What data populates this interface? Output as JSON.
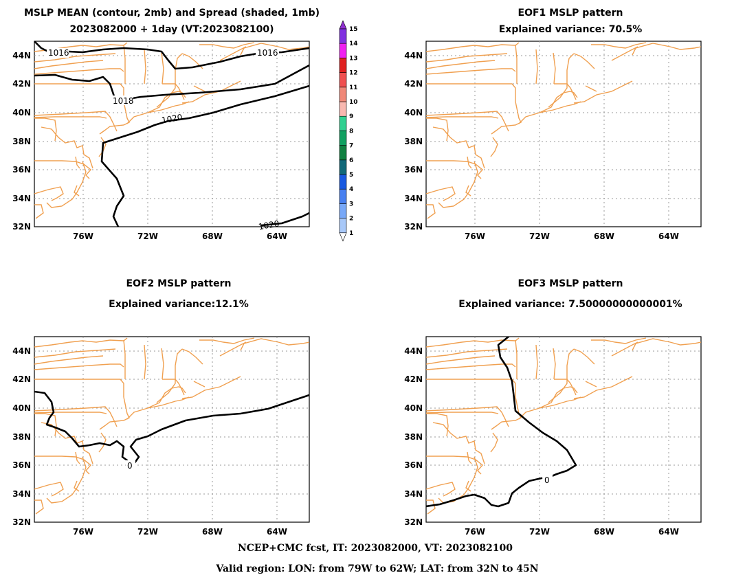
{
  "colors": {
    "coastline": "#f0a050",
    "contour": "#000000",
    "grid": "#999999"
  },
  "panels": [
    {
      "id": "mean",
      "title1": "MSLP MEAN (contour, 2mb) and Spread (shaded, 1mb)",
      "title2": "2023082000 + 1day (VT:2023082100)",
      "contour_labels": [
        "1016",
        "1016",
        "1018",
        "1020",
        "1020"
      ]
    },
    {
      "id": "eof1",
      "title1": "EOF1 MSLP pattern",
      "title2": "Explained variance: 70.5%",
      "contour_labels": []
    },
    {
      "id": "eof2",
      "title1": "EOF2 MSLP pattern",
      "title2": "Explained variance:12.1%",
      "contour_labels": [
        "0"
      ]
    },
    {
      "id": "eof3",
      "title1": "EOF3 MSLP pattern",
      "title2": "Explained variance: 7.50000000000001%",
      "contour_labels": [
        "0"
      ]
    }
  ],
  "axes": {
    "lat_labels": [
      "32N",
      "34N",
      "36N",
      "38N",
      "40N",
      "42N",
      "44N"
    ],
    "lon_labels": [
      "76W",
      "72W",
      "68W",
      "64W"
    ],
    "lon_range": [
      "79W",
      "62W"
    ],
    "lat_range": [
      "32N",
      "45N"
    ]
  },
  "colorbar": {
    "levels": [
      "1",
      "2",
      "3",
      "4",
      "5",
      "6",
      "7",
      "8",
      "9",
      "10",
      "11",
      "12",
      "13",
      "14",
      "15"
    ],
    "colors": [
      "#ffffff",
      "#a8c8f8",
      "#78a8f8",
      "#4880f0",
      "#1858e0",
      "#106878",
      "#108040",
      "#10a060",
      "#30d090",
      "#f8b8b0",
      "#f08878",
      "#f05050",
      "#e02020",
      "#f020f0",
      "#8030e0",
      "#9030d0"
    ]
  },
  "footer": {
    "line1": "NCEP+CMC fcst, IT: 2023082000, VT: 2023082100",
    "line2": "Valid region: LON: from 79W to 62W; LAT: from 32N to 45N"
  }
}
